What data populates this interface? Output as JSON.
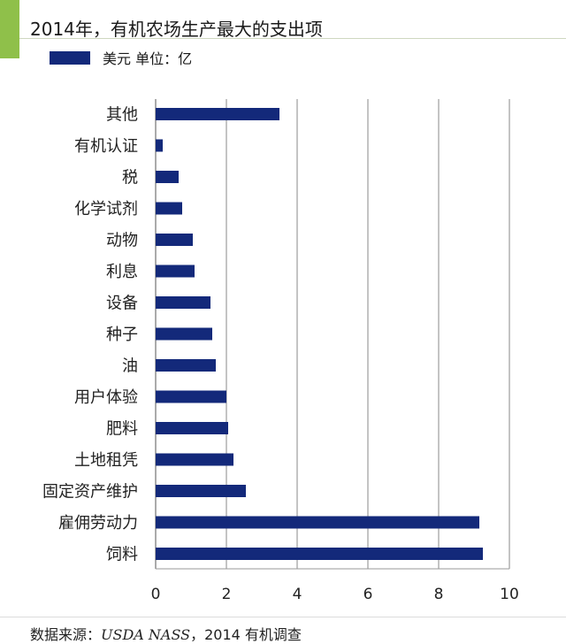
{
  "header": {
    "title": "2014年，有机农场生产最大的支出项",
    "accent_color": "#8fc04a"
  },
  "legend": {
    "label": "美元 单位：亿"
  },
  "footer": {
    "source_prefix": "数据来源：",
    "source_name": "USDA NASS",
    "source_suffix": "，2014 有机调查"
  },
  "chart_data": {
    "type": "bar",
    "orientation": "horizontal",
    "title": "2014年，有机农场生产最大的支出项",
    "categories": [
      "其他",
      "有机认证",
      "税",
      "化学试剂",
      "动物",
      "利息",
      "设备",
      "种子",
      "油",
      "用户体验",
      "肥料",
      "土地租凭",
      "固定资产维护",
      "雇佣劳动力",
      "饲料"
    ],
    "series": [
      {
        "name": "美元 单位：亿",
        "color": "#13297a",
        "values": [
          3.5,
          0.2,
          0.65,
          0.75,
          1.05,
          1.1,
          1.55,
          1.6,
          1.7,
          2.0,
          2.05,
          2.2,
          2.55,
          9.15,
          9.25
        ]
      }
    ],
    "xlim": [
      0,
      10
    ],
    "xticks": [
      "0",
      "2",
      "4",
      "6",
      "8",
      "10"
    ],
    "grid": "vertical",
    "legend_position": "top-left"
  }
}
